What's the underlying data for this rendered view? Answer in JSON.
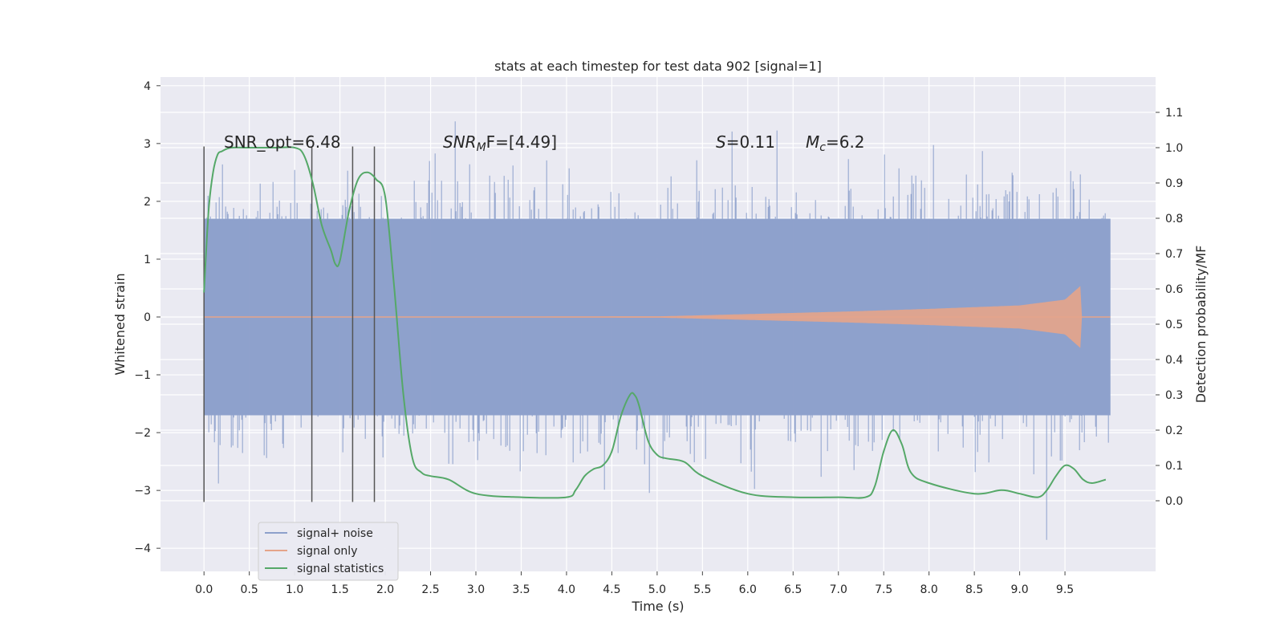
{
  "chart_data": {
    "type": "line",
    "title": "stats at each timestep for test data 902 [signal=1]",
    "xlabel": "Time (s)",
    "ylabel_left": "Whitened strain",
    "ylabel_right": "Detection probability/MF",
    "xlim": [
      -0.48,
      10.5
    ],
    "ylim_left": [
      -4.4,
      4.15
    ],
    "ylim_right": [
      -0.2,
      1.2
    ],
    "x_ticks": [
      "0.0",
      "0.5",
      "1.0",
      "1.5",
      "2.0",
      "2.5",
      "3.0",
      "3.5",
      "4.0",
      "4.5",
      "5.0",
      "5.5",
      "6.0",
      "6.5",
      "7.0",
      "7.5",
      "8.0",
      "8.5",
      "9.0",
      "9.5"
    ],
    "y_left_ticks": [
      "−4",
      "−3",
      "−2",
      "−1",
      "0",
      "1",
      "2",
      "3",
      "4"
    ],
    "y_right_ticks": [
      "0.0",
      "0.1",
      "0.2",
      "0.3",
      "0.4",
      "0.5",
      "0.6",
      "0.7",
      "0.8",
      "0.9",
      "1.0",
      "1.1"
    ],
    "grid": true,
    "legend_position": "lower-left",
    "legend": [
      "signal+ noise",
      "signal only",
      "signal statistics"
    ],
    "colors": {
      "signal_noise": "#8da0cb",
      "signal_only": "#e5a48a",
      "statistics": "#55a868",
      "markers": "#555555",
      "background": "#eaeaf2"
    },
    "annotations": {
      "snr_opt": "SNR_opt=6.48",
      "snr_mf_name": "SNR",
      "snr_mf_sub": "M",
      "snr_mf_value": "F=[4.49]",
      "s_name": "S",
      "s_value": "=0.11",
      "mc_name": "M",
      "mc_sub": "c",
      "mc_value": "=6.2"
    },
    "vertical_markers_x": [
      0.0,
      1.19,
      1.64,
      1.88
    ],
    "signal_noise": {
      "x_range": [
        0.0,
        10.0
      ],
      "typical_range": [
        -1.7,
        1.7
      ],
      "extreme_range": [
        -4.0,
        3.7
      ]
    },
    "signal_only": {
      "x_range": [
        0.0,
        10.0
      ],
      "envelope_x": [
        0.0,
        5.0,
        6.0,
        7.0,
        8.0,
        9.0,
        9.5,
        9.68
      ],
      "envelope_amp": [
        0.0,
        0.01,
        0.05,
        0.09,
        0.14,
        0.2,
        0.3,
        0.55
      ],
      "end_x": 9.69
    },
    "signal_statistics": {
      "name": "signal statistics",
      "x": [
        0.0,
        0.05,
        0.1,
        0.15,
        0.2,
        0.3,
        0.5,
        0.8,
        1.0,
        1.1,
        1.2,
        1.3,
        1.4,
        1.45,
        1.5,
        1.6,
        1.7,
        1.8,
        1.9,
        2.0,
        2.1,
        2.2,
        2.3,
        2.4,
        2.5,
        2.7,
        3.0,
        3.5,
        4.0,
        4.1,
        4.2,
        4.3,
        4.4,
        4.5,
        4.6,
        4.7,
        4.75,
        4.8,
        4.9,
        5.0,
        5.1,
        5.3,
        5.5,
        6.0,
        6.5,
        7.0,
        7.3,
        7.4,
        7.5,
        7.6,
        7.7,
        7.8,
        8.0,
        8.5,
        8.8,
        9.0,
        9.2,
        9.3,
        9.4,
        9.5,
        9.6,
        9.7,
        9.8,
        9.95
      ],
      "y": [
        0.59,
        0.82,
        0.93,
        0.98,
        0.99,
        1.0,
        1.0,
        1.0,
        1.0,
        0.98,
        0.9,
        0.78,
        0.71,
        0.67,
        0.68,
        0.82,
        0.91,
        0.93,
        0.91,
        0.86,
        0.6,
        0.3,
        0.12,
        0.08,
        0.07,
        0.06,
        0.02,
        0.01,
        0.01,
        0.03,
        0.07,
        0.09,
        0.1,
        0.14,
        0.24,
        0.3,
        0.3,
        0.27,
        0.17,
        0.13,
        0.12,
        0.11,
        0.07,
        0.02,
        0.01,
        0.01,
        0.01,
        0.04,
        0.14,
        0.2,
        0.16,
        0.08,
        0.05,
        0.02,
        0.03,
        0.02,
        0.01,
        0.03,
        0.07,
        0.1,
        0.09,
        0.06,
        0.05,
        0.06
      ]
    }
  }
}
